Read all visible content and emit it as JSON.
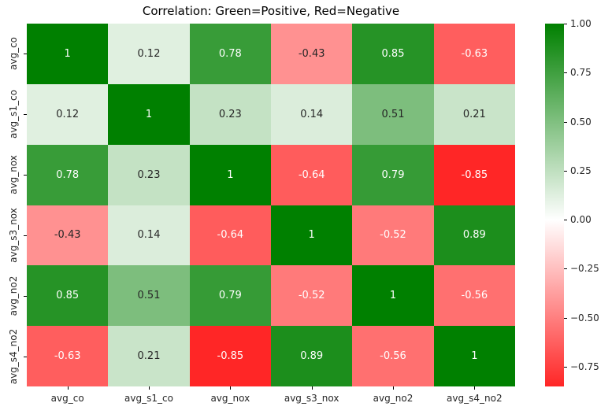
{
  "figure": {
    "title": "Correlation: Green=Positive, Red=Negative"
  },
  "chart_data": {
    "type": "heatmap",
    "title": "Correlation: Green=Positive, Red=Negative",
    "x_labels": [
      "avg_co",
      "avg_s1_co",
      "avg_nox",
      "avg_s3_nox",
      "avg_no2",
      "avg_s4_no2"
    ],
    "y_labels": [
      "avg_co",
      "avg_s1_co",
      "avg_nox",
      "avg_s3_nox",
      "avg_no2",
      "avg_s4_no2"
    ],
    "matrix": [
      [
        1,
        0.12,
        0.78,
        -0.43,
        0.85,
        -0.63
      ],
      [
        0.12,
        1,
        0.23,
        0.14,
        0.51,
        0.21
      ],
      [
        0.78,
        0.23,
        1,
        -0.64,
        0.79,
        -0.85
      ],
      [
        -0.43,
        0.14,
        -0.64,
        1,
        -0.52,
        0.89
      ],
      [
        0.85,
        0.51,
        0.79,
        -0.52,
        1,
        -0.56
      ],
      [
        -0.63,
        0.21,
        -0.85,
        0.89,
        -0.56,
        1
      ]
    ],
    "vmin": -0.85,
    "vmax": 1.0,
    "center": 0,
    "colormap": {
      "negative": "#ff0000",
      "mid": "#ffffff",
      "positive": "#008000"
    },
    "annotation_text_dark": "#262626",
    "annotation_text_light": "#ffffff",
    "colorbar": {
      "tick_labels": [
        "1.00",
        "0.75",
        "0.50",
        "0.25",
        "0.00",
        "−0.25",
        "−0.50",
        "−0.75"
      ],
      "tick_values": [
        1.0,
        0.75,
        0.5,
        0.25,
        0.0,
        -0.25,
        -0.5,
        -0.75
      ],
      "legend_position": "right"
    },
    "grid": false
  }
}
